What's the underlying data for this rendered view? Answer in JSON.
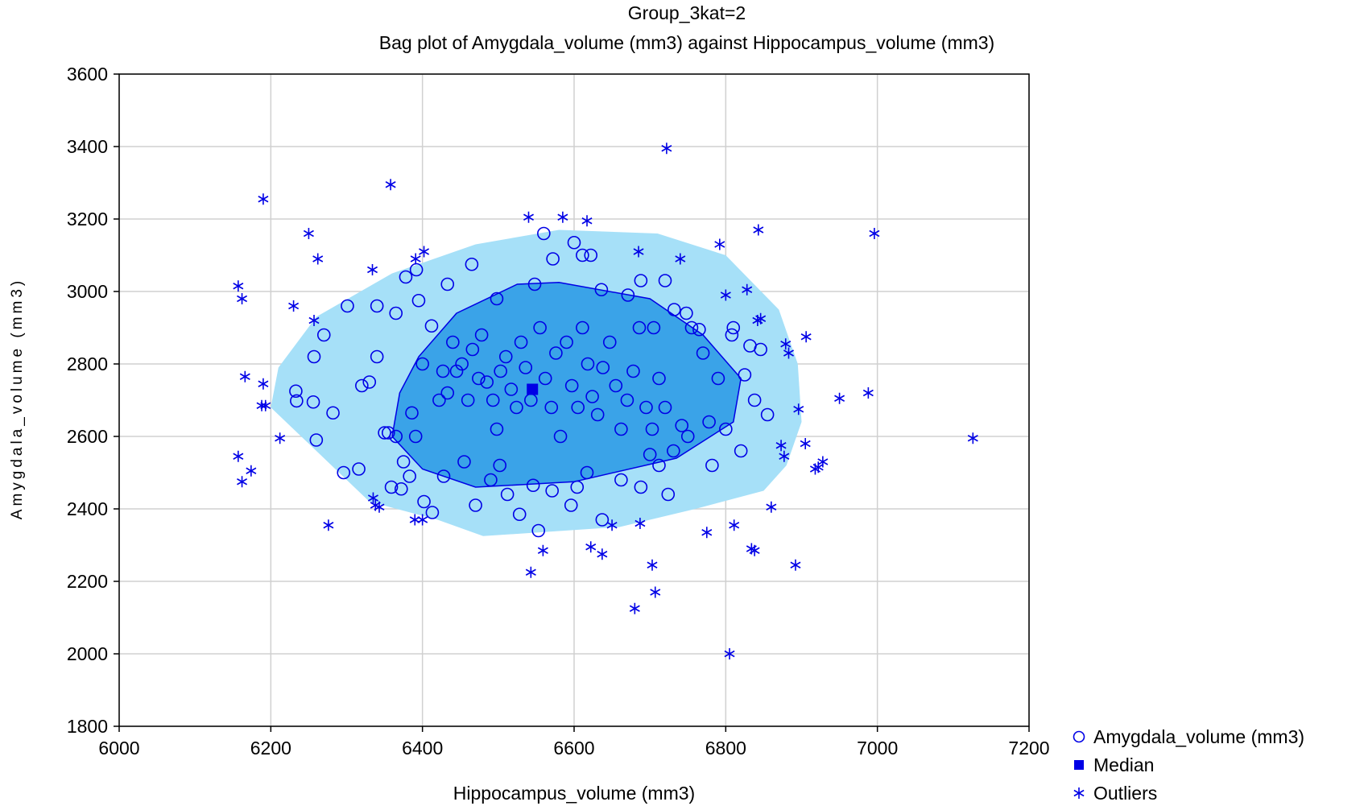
{
  "chart_data": {
    "type": "scatter",
    "title": "Group_3kat=2",
    "subtitle": "Bag plot of Amygdala_volume (mm3) against Hippocampus_volume (mm3)",
    "xlabel": "Hippocampus_volume (mm3)",
    "ylabel": "Amygdala_volume (mm3)",
    "xlim": [
      6000,
      7200
    ],
    "ylim": [
      1800,
      3600
    ],
    "xticks": [
      "6000",
      "6200",
      "6400",
      "6600",
      "6800",
      "7000",
      "7200"
    ],
    "yticks": [
      "1800",
      "2000",
      "2200",
      "2400",
      "2600",
      "2800",
      "3000",
      "3200",
      "3400",
      "3600"
    ],
    "grid": true,
    "legend_position": "bottom-right",
    "colors": {
      "points": "#0000e6",
      "bag": "#3aa3e8",
      "fence": "#a6e0f8",
      "grid": "#d0d0d0"
    },
    "legend": [
      {
        "label": "Amygdala_volume (mm3)",
        "marker": "circle"
      },
      {
        "label": "Median",
        "marker": "square"
      },
      {
        "label": "Outliers",
        "marker": "asterisk"
      }
    ],
    "median": [
      6545,
      2730
    ],
    "bag_polygon": [
      [
        6445,
        2940
      ],
      [
        6525,
        3020
      ],
      [
        6580,
        3025
      ],
      [
        6700,
        2980
      ],
      [
        6770,
        2880
      ],
      [
        6820,
        2760
      ],
      [
        6810,
        2640
      ],
      [
        6735,
        2540
      ],
      [
        6600,
        2475
      ],
      [
        6470,
        2460
      ],
      [
        6400,
        2510
      ],
      [
        6360,
        2600
      ],
      [
        6370,
        2720
      ],
      [
        6395,
        2820
      ]
    ],
    "fence_polygon": [
      [
        6360,
        3050
      ],
      [
        6470,
        3130
      ],
      [
        6580,
        3170
      ],
      [
        6710,
        3160
      ],
      [
        6800,
        3100
      ],
      [
        6870,
        2950
      ],
      [
        6895,
        2800
      ],
      [
        6900,
        2640
      ],
      [
        6880,
        2520
      ],
      [
        6850,
        2450
      ],
      [
        6760,
        2400
      ],
      [
        6660,
        2350
      ],
      [
        6480,
        2325
      ],
      [
        6420,
        2370
      ],
      [
        6330,
        2420
      ],
      [
        6240,
        2600
      ],
      [
        6200,
        2680
      ],
      [
        6210,
        2790
      ],
      [
        6260,
        2930
      ]
    ],
    "series": [
      {
        "name": "Amygdala_volume (mm3)",
        "points": [
          [
            6233,
            2725
          ],
          [
            6234,
            2698
          ],
          [
            6256,
            2695
          ],
          [
            6257,
            2820
          ],
          [
            6270,
            2880
          ],
          [
            6301,
            2960
          ],
          [
            6320,
            2740
          ],
          [
            6330,
            2750
          ],
          [
            6340,
            2820
          ],
          [
            6355,
            2610
          ],
          [
            6365,
            2600
          ],
          [
            6375,
            2530
          ],
          [
            6372,
            2455
          ],
          [
            6386,
            2665
          ],
          [
            6391,
            2600
          ],
          [
            6395,
            2975
          ],
          [
            6400,
            2800
          ],
          [
            6412,
            2905
          ],
          [
            6422,
            2700
          ],
          [
            6427,
            2780
          ],
          [
            6433,
            2720
          ],
          [
            6440,
            2860
          ],
          [
            6445,
            2780
          ],
          [
            6452,
            2800
          ],
          [
            6460,
            2700
          ],
          [
            6466,
            2840
          ],
          [
            6474,
            2760
          ],
          [
            6478,
            2880
          ],
          [
            6485,
            2750
          ],
          [
            6493,
            2700
          ],
          [
            6498,
            2620
          ],
          [
            6503,
            2780
          ],
          [
            6510,
            2820
          ],
          [
            6517,
            2730
          ],
          [
            6524,
            2680
          ],
          [
            6530,
            2860
          ],
          [
            6536,
            2790
          ],
          [
            6543,
            2700
          ],
          [
            6555,
            2900
          ],
          [
            6562,
            2760
          ],
          [
            6570,
            2680
          ],
          [
            6576,
            2830
          ],
          [
            6582,
            2600
          ],
          [
            6590,
            2860
          ],
          [
            6597,
            2740
          ],
          [
            6605,
            2680
          ],
          [
            6611,
            2900
          ],
          [
            6618,
            2800
          ],
          [
            6624,
            2710
          ],
          [
            6631,
            2660
          ],
          [
            6638,
            2790
          ],
          [
            6647,
            2860
          ],
          [
            6655,
            2740
          ],
          [
            6662,
            2620
          ],
          [
            6670,
            2700
          ],
          [
            6678,
            2780
          ],
          [
            6686,
            2900
          ],
          [
            6695,
            2680
          ],
          [
            6703,
            2620
          ],
          [
            6712,
            2760
          ],
          [
            6720,
            2680
          ],
          [
            6731,
            2560
          ],
          [
            6742,
            2630
          ],
          [
            6755,
            2900
          ],
          [
            6770,
            2830
          ],
          [
            6778,
            2640
          ],
          [
            6790,
            2760
          ],
          [
            6800,
            2620
          ],
          [
            6810,
            2900
          ],
          [
            6825,
            2770
          ],
          [
            6838,
            2700
          ],
          [
            6846,
            2840
          ],
          [
            6855,
            2660
          ],
          [
            6260,
            2590
          ],
          [
            6282,
            2665
          ],
          [
            6296,
            2500
          ],
          [
            6316,
            2510
          ],
          [
            6350,
            2610
          ],
          [
            6359,
            2460
          ],
          [
            6383,
            2490
          ],
          [
            6402,
            2420
          ],
          [
            6413,
            2390
          ],
          [
            6428,
            2490
          ],
          [
            6455,
            2530
          ],
          [
            6470,
            2410
          ],
          [
            6490,
            2480
          ],
          [
            6502,
            2520
          ],
          [
            6512,
            2440
          ],
          [
            6528,
            2385
          ],
          [
            6546,
            2465
          ],
          [
            6553,
            2340
          ],
          [
            6571,
            2450
          ],
          [
            6596,
            2410
          ],
          [
            6604,
            2460
          ],
          [
            6617,
            2500
          ],
          [
            6637,
            2370
          ],
          [
            6662,
            2480
          ],
          [
            6688,
            2460
          ],
          [
            6700,
            2550
          ],
          [
            6712,
            2520
          ],
          [
            6724,
            2440
          ],
          [
            6750,
            2600
          ],
          [
            6782,
            2520
          ],
          [
            6820,
            2560
          ],
          [
            6340,
            2960
          ],
          [
            6365,
            2940
          ],
          [
            6378,
            3040
          ],
          [
            6392,
            3060
          ],
          [
            6433,
            3020
          ],
          [
            6465,
            3075
          ],
          [
            6498,
            2980
          ],
          [
            6548,
            3020
          ],
          [
            6560,
            3160
          ],
          [
            6572,
            3090
          ],
          [
            6600,
            3135
          ],
          [
            6611,
            3100
          ],
          [
            6622,
            3100
          ],
          [
            6636,
            3005
          ],
          [
            6671,
            2990
          ],
          [
            6688,
            3030
          ],
          [
            6705,
            2900
          ],
          [
            6720,
            3030
          ],
          [
            6732,
            2950
          ],
          [
            6748,
            2940
          ],
          [
            6765,
            2895
          ],
          [
            6808,
            2880
          ],
          [
            6832,
            2850
          ]
        ]
      },
      {
        "name": "Outliers",
        "points": [
          [
            6190,
            3255
          ],
          [
            6250,
            3160
          ],
          [
            6262,
            3090
          ],
          [
            6334,
            3060
          ],
          [
            6358,
            3295
          ],
          [
            6402,
            3110
          ],
          [
            6391,
            3090
          ],
          [
            6157,
            3015
          ],
          [
            6162,
            2980
          ],
          [
            6230,
            2960
          ],
          [
            6257,
            2920
          ],
          [
            6166,
            2765
          ],
          [
            6190,
            2745
          ],
          [
            6188,
            2685
          ],
          [
            6193,
            2685
          ],
          [
            6212,
            2595
          ],
          [
            6157,
            2545
          ],
          [
            6162,
            2475
          ],
          [
            6174,
            2505
          ],
          [
            6276,
            2355
          ],
          [
            6335,
            2430
          ],
          [
            6338,
            2410
          ],
          [
            6343,
            2405
          ],
          [
            6390,
            2370
          ],
          [
            6400,
            2370
          ],
          [
            6540,
            3205
          ],
          [
            6585,
            3205
          ],
          [
            6617,
            3195
          ],
          [
            6722,
            3395
          ],
          [
            6685,
            3110
          ],
          [
            6740,
            3090
          ],
          [
            6792,
            3130
          ],
          [
            6843,
            3170
          ],
          [
            6996,
            3160
          ],
          [
            6800,
            2990
          ],
          [
            6828,
            3005
          ],
          [
            6842,
            2920
          ],
          [
            6846,
            2925
          ],
          [
            6879,
            2855
          ],
          [
            6883,
            2830
          ],
          [
            6906,
            2875
          ],
          [
            6896,
            2675
          ],
          [
            6950,
            2705
          ],
          [
            6988,
            2720
          ],
          [
            7126,
            2595
          ],
          [
            6873,
            2575
          ],
          [
            6877,
            2545
          ],
          [
            6905,
            2580
          ],
          [
            6918,
            2510
          ],
          [
            6922,
            2515
          ],
          [
            6928,
            2530
          ],
          [
            6860,
            2405
          ],
          [
            6811,
            2355
          ],
          [
            6775,
            2335
          ],
          [
            6834,
            2290
          ],
          [
            6838,
            2285
          ],
          [
            6892,
            2245
          ],
          [
            6650,
            2355
          ],
          [
            6687,
            2360
          ],
          [
            6622,
            2295
          ],
          [
            6637,
            2275
          ],
          [
            6703,
            2245
          ],
          [
            6707,
            2170
          ],
          [
            6680,
            2125
          ],
          [
            6805,
            2000
          ],
          [
            6543,
            2225
          ],
          [
            6559,
            2285
          ]
        ]
      }
    ]
  }
}
